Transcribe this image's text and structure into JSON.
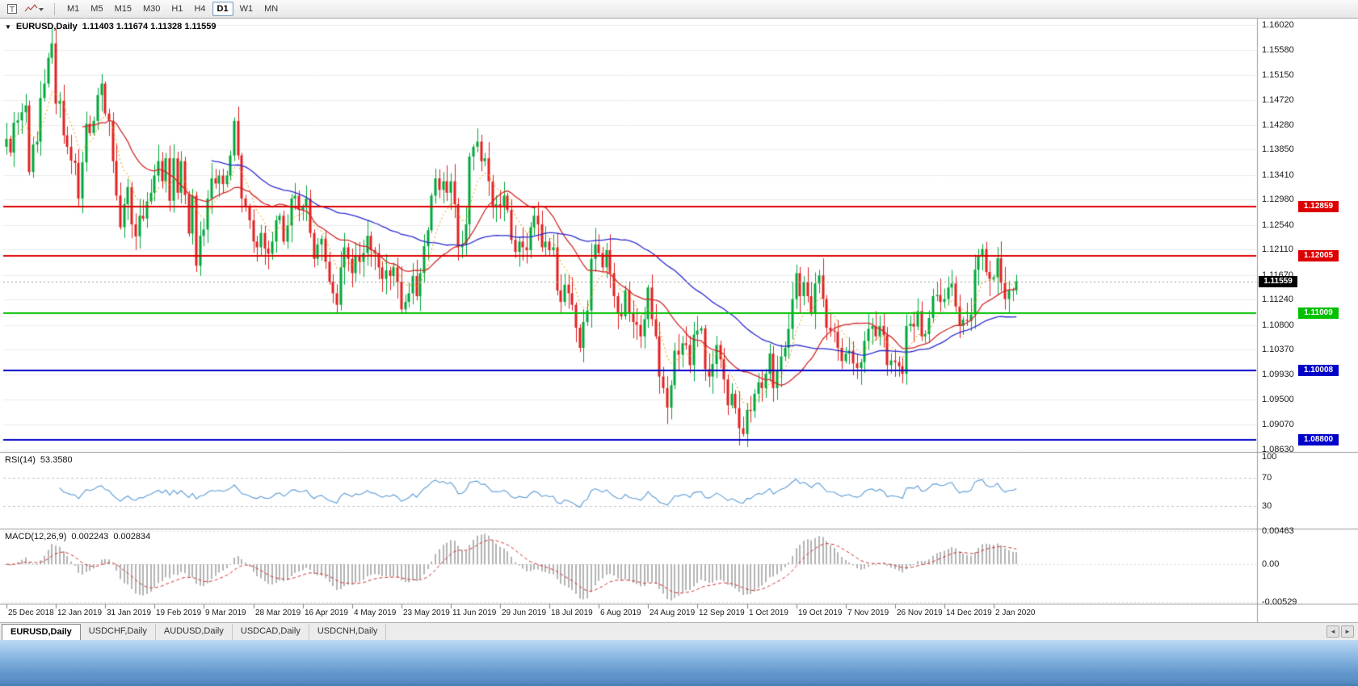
{
  "icons": {
    "tab_scroll_left": "◄",
    "tab_scroll_right": "►",
    "quote_arrow": "▼"
  },
  "toolbar": {
    "icons": [
      {
        "name": "chart-window-icon"
      },
      {
        "name": "chart-style-dropdown"
      }
    ],
    "timeframes": [
      {
        "label": "M1",
        "active": false
      },
      {
        "label": "M5",
        "active": false
      },
      {
        "label": "M15",
        "active": false
      },
      {
        "label": "M30",
        "active": false
      },
      {
        "label": "H1",
        "active": false
      },
      {
        "label": "H4",
        "active": false
      },
      {
        "label": "D1",
        "active": true
      },
      {
        "label": "W1",
        "active": false
      },
      {
        "label": "MN",
        "active": false
      }
    ]
  },
  "chart": {
    "header": {
      "arrow": "▼",
      "symbol": "EURUSD,Daily",
      "ohlc": "1.11403 1.11674 1.11328 1.11559"
    },
    "price_scale": [
      "1.16020",
      "1.15580",
      "1.15150",
      "1.14720",
      "1.14280",
      "1.13850",
      "1.13410",
      "1.12980",
      "1.12540",
      "1.12110",
      "1.11670",
      "1.11240",
      "1.10800",
      "1.10370",
      "1.09930",
      "1.09500",
      "1.09070",
      "1.08630"
    ],
    "hlines": [
      {
        "label": "1.12859",
        "value": 1.12859,
        "color": "#DD0000"
      },
      {
        "label": "1.12005",
        "value": 1.12005,
        "color": "#DD0000"
      },
      {
        "label": "1.11009",
        "value": 1.11009,
        "color": "#00C000"
      },
      {
        "label": "1.10008",
        "value": 1.10008,
        "color": "#0000C8"
      },
      {
        "label": "1.08800",
        "value": 1.088,
        "color": "#0000C8"
      }
    ],
    "current_price": {
      "label": "1.11559",
      "value": 1.11559,
      "color": "#000000"
    },
    "date_labels": [
      "25 Dec 2018",
      "12 Jan 2019",
      "31 Jan 2019",
      "19 Feb 2019",
      "9 Mar 2019",
      "28 Mar 2019",
      "16 Apr 2019",
      "4 May 2019",
      "23 May 2019",
      "11 Jun 2019",
      "29 Jun 2019",
      "18 Jul 2019",
      "6 Aug 2019",
      "24 Aug 2019",
      "12 Sep 2019",
      "1 Oct 2019",
      "19 Oct 2019",
      "7 Nov 2019",
      "26 Nov 2019",
      "14 Dec 2019",
      "2 Jan 2020"
    ]
  },
  "rsi": {
    "title": "RSI(14)",
    "value": "53.3580",
    "scale": [
      "100",
      "70",
      "30"
    ],
    "scale_values": [
      100,
      70,
      30
    ],
    "levels": [
      70,
      30
    ],
    "color": "#5C9CD6"
  },
  "macd": {
    "title": "MACD(12,26,9)",
    "value_main": "0.002243",
    "value_signal": "0.002834",
    "scale": [
      "0.00463",
      "0.00",
      "-0.00529"
    ],
    "scale_values": [
      0.00463,
      0,
      -0.00529
    ],
    "range": [
      -0.00529,
      0.00463
    ],
    "histogram_color": "#B4B4B4",
    "signal_color": "#D23030"
  },
  "tabs": [
    {
      "label": "EURUSD,Daily",
      "active": true
    },
    {
      "label": "USDCHF,Daily",
      "active": false
    },
    {
      "label": "AUDUSD,Daily",
      "active": false
    },
    {
      "label": "USDCAD,Daily",
      "active": false
    },
    {
      "label": "USDCNH,Daily",
      "active": false
    }
  ],
  "chart_data": {
    "type": "candlestick",
    "symbol": "EURUSD",
    "timeframe": "D1",
    "title": "EURUSD,Daily",
    "y_range": [
      1.0863,
      1.1602
    ],
    "first_open": 1.139,
    "last_candle": {
      "open": 1.11403,
      "high": 1.11674,
      "low": 1.11328,
      "close": 1.11559
    },
    "colors": {
      "up": "#00A83A",
      "down": "#E22020",
      "ma_fast": "#E8A000",
      "ma_mid": "#D02828",
      "ma_slow": "#2A2AD0"
    },
    "moving_averages": [
      {
        "period": 8,
        "style": "dotted",
        "color": "#E8A000"
      },
      {
        "period": 21,
        "style": "solid",
        "color": "#D02828"
      },
      {
        "period": 55,
        "style": "solid",
        "color": "#2A2AD0"
      }
    ],
    "indicators": [
      {
        "name": "RSI",
        "period": 14,
        "current": 53.358
      },
      {
        "name": "MACD",
        "fast": 12,
        "slow": 26,
        "signal": 9,
        "current_main": 0.002243,
        "current_signal": 0.002834
      }
    ],
    "closes": [
      1.1404,
      1.138,
      1.1432,
      1.1436,
      1.145,
      1.1462,
      1.1346,
      1.1394,
      1.1399,
      1.1475,
      1.15,
      1.1545,
      1.157,
      1.1465,
      1.147,
      1.141,
      1.139,
      1.1366,
      1.1362,
      1.13,
      1.1363,
      1.143,
      1.1414,
      1.1435,
      1.148,
      1.15,
      1.1448,
      1.1435,
      1.1365,
      1.1305,
      1.125,
      1.129,
      1.132,
      1.1255,
      1.1234,
      1.127,
      1.1265,
      1.1295,
      1.131,
      1.134,
      1.1365,
      1.133,
      1.137,
      1.1296,
      1.137,
      1.131,
      1.1365,
      1.1306,
      1.1239,
      1.1305,
      1.1183,
      1.1235,
      1.1246,
      1.13,
      1.1335,
      1.1326,
      1.134,
      1.1325,
      1.134,
      1.1375,
      1.1435,
      1.1375,
      1.13,
      1.1285,
      1.1262,
      1.1225,
      1.1215,
      1.124,
      1.1213,
      1.1204,
      1.1225,
      1.1262,
      1.127,
      1.1225,
      1.1253,
      1.13,
      1.1305,
      1.128,
      1.1285,
      1.13,
      1.124,
      1.1195,
      1.122,
      1.123,
      1.119,
      1.1155,
      1.1135,
      1.1115,
      1.118,
      1.1215,
      1.1195,
      1.117,
      1.12,
      1.119,
      1.1205,
      1.1235,
      1.121,
      1.1205,
      1.118,
      1.116,
      1.1175,
      1.1165,
      1.118,
      1.1155,
      1.1107,
      1.112,
      1.1135,
      1.1165,
      1.113,
      1.117,
      1.1217,
      1.1245,
      1.1305,
      1.1335,
      1.1315,
      1.133,
      1.131,
      1.133,
      1.129,
      1.1215,
      1.122,
      1.1255,
      1.1373,
      1.139,
      1.1399,
      1.1365,
      1.137,
      1.133,
      1.1285,
      1.129,
      1.1285,
      1.1305,
      1.128,
      1.1228,
      1.1207,
      1.1225,
      1.1215,
      1.121,
      1.125,
      1.127,
      1.1255,
      1.1215,
      1.1225,
      1.121,
      1.1215,
      1.114,
      1.112,
      1.115,
      1.1135,
      1.1115,
      1.1075,
      1.104,
      1.1085,
      1.1105,
      1.1195,
      1.122,
      1.1205,
      1.118,
      1.121,
      1.117,
      1.113,
      1.11,
      1.1095,
      1.114,
      1.11,
      1.1085,
      1.108,
      1.106,
      1.109,
      1.1145,
      1.109,
      1.106,
      1.099,
      1.097,
      1.0936,
      1.0975,
      1.1035,
      1.1028,
      1.1048,
      1.1045,
      1.101,
      1.1063,
      1.107,
      1.1074,
      1.1003,
      1.099,
      1.1012,
      1.1045,
      1.102,
      1.0985,
      1.094,
      1.096,
      1.0935,
      1.09,
      1.089,
      1.0932,
      1.093,
      1.096,
      1.098,
      1.097,
      1.0995,
      1.103,
      1.097,
      1.1,
      1.1025,
      1.104,
      1.1073,
      1.1125,
      1.117,
      1.113,
      1.1155,
      1.113,
      1.11,
      1.1152,
      1.1166,
      1.1125,
      1.1075,
      1.107,
      1.1068,
      1.104,
      1.1017,
      1.103,
      1.1035,
      1.1013,
      1.1005,
      1.1015,
      1.1052,
      1.1073,
      1.1078,
      1.106,
      1.1078,
      1.1062,
      1.101,
      1.1018,
      1.1015,
      1.1008,
      1.0995,
      1.1078,
      1.1082,
      1.1077,
      1.1104,
      1.106,
      1.1064,
      1.1092,
      1.113,
      1.1132,
      1.112,
      1.1125,
      1.1145,
      1.1152,
      1.1112,
      1.1078,
      1.1089,
      1.1087,
      1.1098,
      1.1176,
      1.1199,
      1.1212,
      1.1172,
      1.116,
      1.1163,
      1.1196,
      1.1153,
      1.1125,
      1.114,
      1.11403,
      1.11559
    ]
  }
}
